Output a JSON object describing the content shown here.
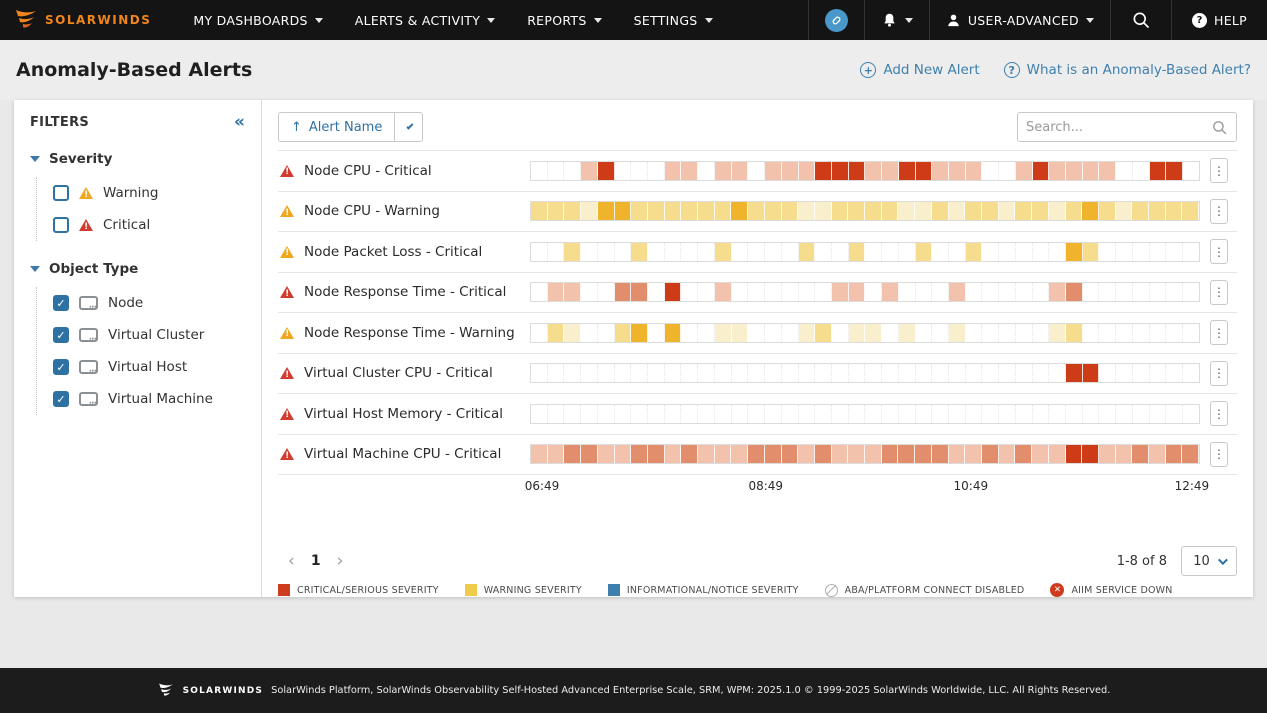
{
  "nav": {
    "brand": "SOLARWINDS",
    "items": [
      {
        "label": "MY DASHBOARDS"
      },
      {
        "label": "ALERTS & ACTIVITY"
      },
      {
        "label": "REPORTS"
      },
      {
        "label": "SETTINGS"
      }
    ],
    "user_label": "USER-ADVANCED",
    "help_label": "HELP",
    "help_glyph": "?"
  },
  "header": {
    "title": "Anomaly-Based Alerts",
    "add_new_label": "Add New Alert",
    "add_new_glyph": "+",
    "what_is_label": "What is an Anomaly-Based Alert?",
    "what_is_glyph": "?"
  },
  "filters": {
    "title": "FILTERS",
    "collapse_glyph": "«",
    "sections": [
      {
        "label": "Severity",
        "items": [
          {
            "label": "Warning",
            "checked": false,
            "severity": "warning"
          },
          {
            "label": "Critical",
            "checked": false,
            "severity": "critical"
          }
        ]
      },
      {
        "label": "Object Type",
        "items": [
          {
            "label": "Node",
            "checked": true
          },
          {
            "label": "Virtual Cluster",
            "checked": true
          },
          {
            "label": "Virtual Host",
            "checked": true
          },
          {
            "label": "Virtual Machine",
            "checked": true
          }
        ]
      }
    ]
  },
  "toolbar": {
    "sort_label": "Alert Name",
    "sort_glyph": "↑",
    "search_placeholder": "Search..."
  },
  "alerts": {
    "rows": [
      {
        "name": "Node CPU - Critical",
        "severity": "critical",
        "palette": "critical",
        "cells": "0001300011011011133311331110013111100330"
      },
      {
        "name": "Node CPU - Warning",
        "severity": "warning",
        "palette": "warning",
        "cells": "2221332222223222112222112122122123212222"
      },
      {
        "name": "Node Packet Loss - Critical",
        "severity": "warning",
        "palette": "warning",
        "cells": "0020002000020000200200020020000032000000"
      },
      {
        "name": "Node Response Time - Critical",
        "severity": "critical",
        "palette": "critical",
        "cells": "0110022030010000001101000100000120000000"
      },
      {
        "name": "Node Response Time - Warning",
        "severity": "warning",
        "palette": "warning",
        "cells": "0210023030011000120110100100000120000000"
      },
      {
        "name": "Virtual Cluster CPU - Critical",
        "severity": "critical",
        "palette": "critical",
        "cells": "0000000000000000000000000000000033000000"
      },
      {
        "name": "Virtual Host Memory - Critical",
        "severity": "critical",
        "palette": "critical",
        "cells": "0000000000000000000000000000000000000000"
      },
      {
        "name": "Virtual Machine CPU - Critical",
        "severity": "critical",
        "palette": "critical",
        "cells": "1122112212111222121112222112121133112122"
      }
    ],
    "axis_labels": [
      {
        "label": "06:49",
        "pos": "0%"
      },
      {
        "label": "08:49",
        "pos": "33.4%"
      },
      {
        "label": "10:49",
        "pos": "64%"
      },
      {
        "label": "12:49",
        "pos": "97%"
      }
    ],
    "kebab_glyph": "⋮"
  },
  "palettes": {
    "critical": {
      "1": "#f2c2ac",
      "2": "#e28e6d",
      "3": "#cd3c16"
    },
    "warning": {
      "1": "#faefcd",
      "2": "#f6dd8e",
      "3": "#efb42b"
    }
  },
  "pagination": {
    "prev_glyph": "‹",
    "next_glyph": "›",
    "page": "1",
    "range": "1-8 of 8",
    "page_size": "10"
  },
  "legend": {
    "items": [
      {
        "label": "CRITICAL/SERIOUS SEVERITY",
        "icon": "square",
        "color": "#ce3b1e"
      },
      {
        "label": "WARNING SEVERITY",
        "icon": "square",
        "color": "#f0cb49"
      },
      {
        "label": "INFORMATIONAL/NOTICE SEVERITY",
        "icon": "square",
        "color": "#3e7fae"
      },
      {
        "label": "ABA/PLATFORM CONNECT DISABLED",
        "icon": "circle-slash",
        "color": "#b0b0b0"
      },
      {
        "label": "AIIM SERVICE DOWN",
        "icon": "circle-x",
        "color": "#ce3b1e",
        "glyph": "✕"
      }
    ]
  },
  "footer": {
    "brand": "SOLARWINDS",
    "text": "SolarWinds Platform, SolarWinds Observability Self-Hosted Advanced Enterprise Scale, SRM, WPM: 2025.1.0 © 1999-2025 SolarWinds Worldwide, LLC. All Rights Reserved."
  },
  "colors": {
    "accent_orange": "#f0861d",
    "link_blue": "#3f80ad",
    "checkbox_blue": "#2e72a4",
    "critical_red": "#d13b30",
    "warning_yellow": "#efa720"
  }
}
